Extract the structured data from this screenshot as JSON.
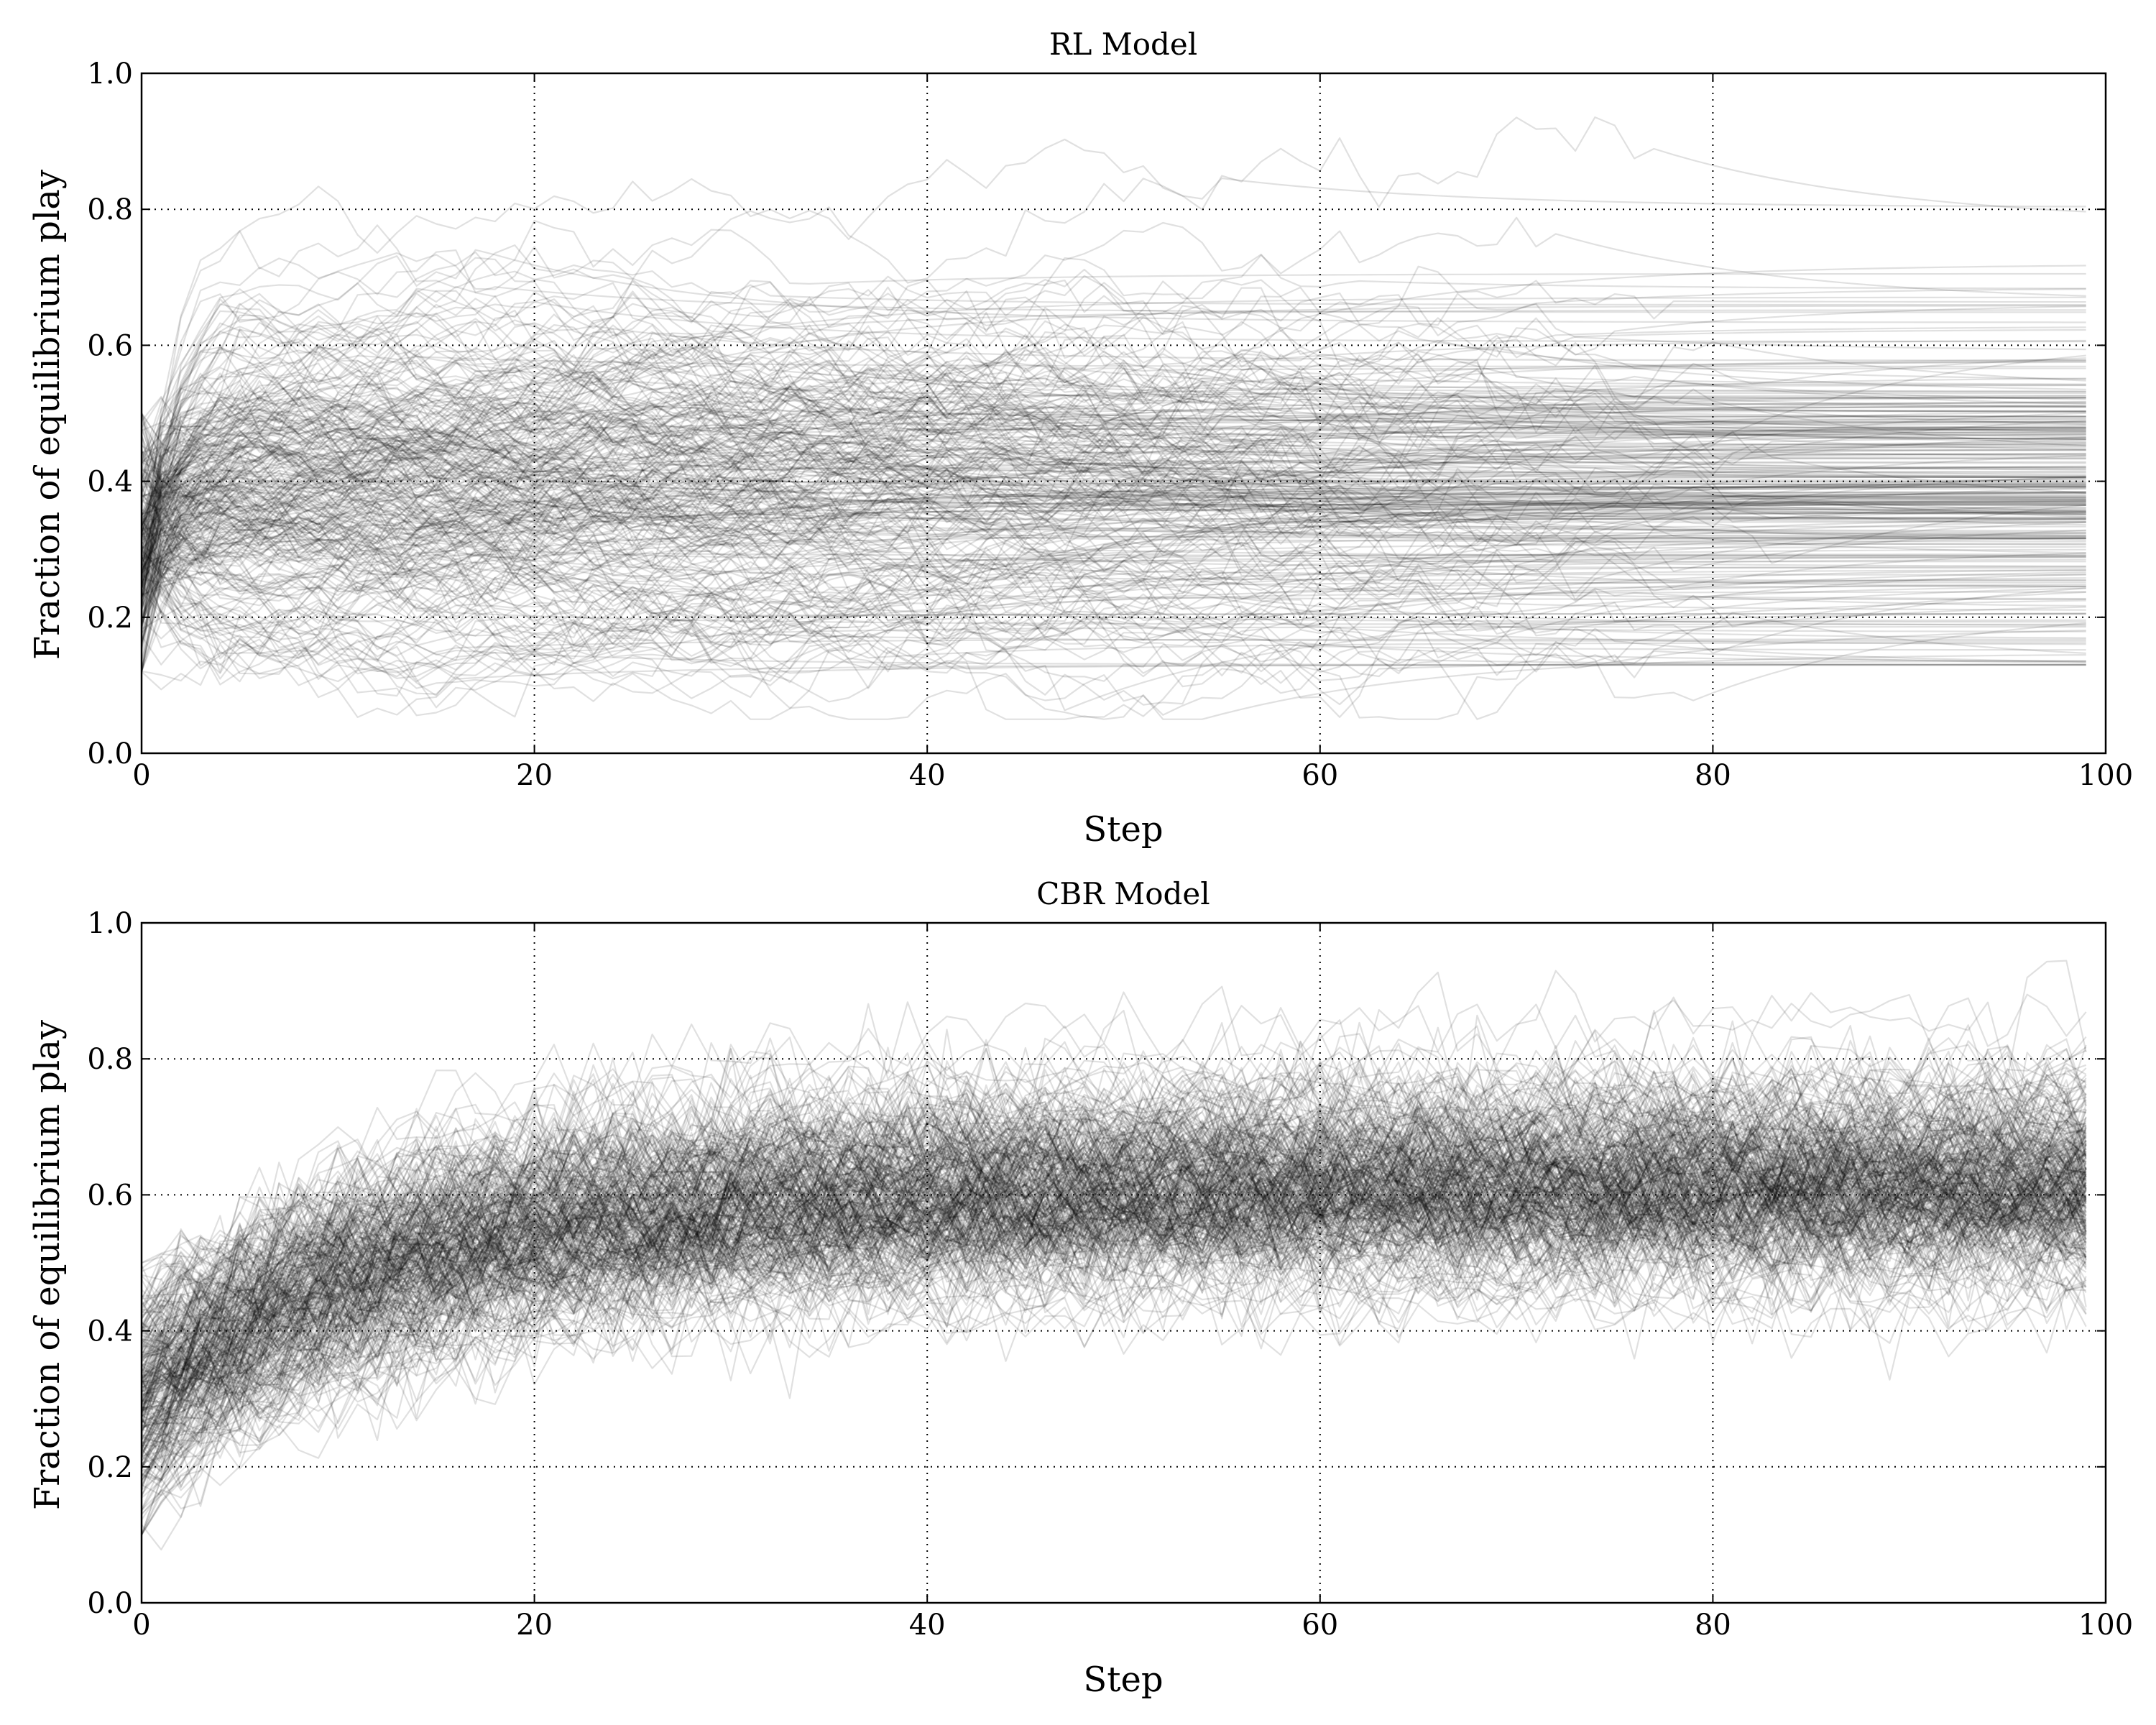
{
  "chart_data": [
    {
      "type": "line",
      "title": "RL Model",
      "xlabel": "Step",
      "ylabel": "Fraction of equilibrium play",
      "xlim": [
        0,
        100
      ],
      "ylim": [
        0.0,
        1.0
      ],
      "xticks": [
        "0",
        "20",
        "40",
        "60",
        "80",
        "100"
      ],
      "yticks": [
        "0.0",
        "0.2",
        "0.4",
        "0.6",
        "0.8",
        "1.0"
      ],
      "grid": true,
      "steps": 100,
      "line_color": "#000000",
      "line_opacity": 0.12,
      "series_summary": {
        "count": 300,
        "start_mean": 0.3,
        "start_min": 0.12,
        "start_max": 0.5,
        "final_mean": 0.4,
        "final_min": 0.11,
        "final_max": 0.91,
        "convergence": "rapid within first ~10 steps, then mostly flat (locked-in)"
      }
    },
    {
      "type": "line",
      "title": "CBR Model",
      "xlabel": "Step",
      "ylabel": "Fraction of equilibrium play",
      "xlim": [
        0,
        100
      ],
      "ylim": [
        0.0,
        1.0
      ],
      "xticks": [
        "0",
        "20",
        "40",
        "60",
        "80",
        "100"
      ],
      "yticks": [
        "0.0",
        "0.2",
        "0.4",
        "0.6",
        "0.8",
        "1.0"
      ],
      "grid": true,
      "steps": 100,
      "line_color": "#000000",
      "line_opacity": 0.12,
      "series_summary": {
        "count": 300,
        "start_mean": 0.3,
        "start_min": 0.1,
        "start_max": 0.5,
        "final_mean": 0.62,
        "final_min": 0.35,
        "final_max": 0.86,
        "convergence": "gradual rise over ~60 steps, noisy band around 0.62"
      }
    }
  ]
}
